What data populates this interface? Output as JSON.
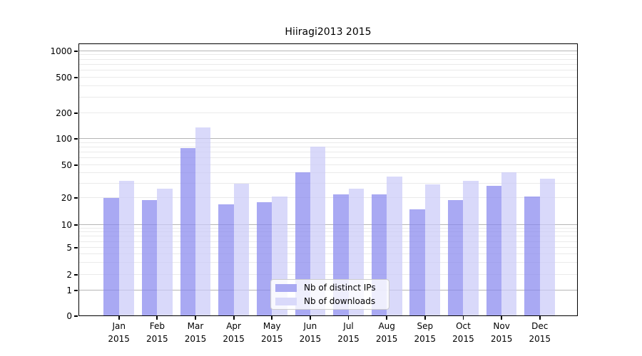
{
  "figure": {
    "title": "Hiiragi2013 2015"
  },
  "chart_data": {
    "type": "bar",
    "title": "Hiiragi2013 2015",
    "categories": [
      "Jan 2015",
      "Feb 2015",
      "Mar 2015",
      "Apr 2015",
      "May 2015",
      "Jun 2015",
      "Jul 2015",
      "Aug 2015",
      "Sep 2015",
      "Oct 2015",
      "Nov 2015",
      "Dec 2015"
    ],
    "x_ticks": [
      {
        "month": "Jan",
        "year": "2015"
      },
      {
        "month": "Feb",
        "year": "2015"
      },
      {
        "month": "Mar",
        "year": "2015"
      },
      {
        "month": "Apr",
        "year": "2015"
      },
      {
        "month": "May",
        "year": "2015"
      },
      {
        "month": "Jun",
        "year": "2015"
      },
      {
        "month": "Jul",
        "year": "2015"
      },
      {
        "month": "Aug",
        "year": "2015"
      },
      {
        "month": "Sep",
        "year": "2015"
      },
      {
        "month": "Oct",
        "year": "2015"
      },
      {
        "month": "Nov",
        "year": "2015"
      },
      {
        "month": "Dec",
        "year": "2015"
      }
    ],
    "series": [
      {
        "name": "Nb of distinct IPs",
        "color": "#a9a9f2",
        "values": [
          20,
          19,
          78,
          17,
          18,
          41,
          22,
          22,
          15,
          19,
          28,
          21
        ]
      },
      {
        "name": "Nb of downloads",
        "color": "#d9d9fa",
        "values": [
          32,
          26,
          136,
          30,
          21,
          82,
          26,
          36,
          29,
          32,
          41,
          34
        ]
      }
    ],
    "yscale": "symlog",
    "yticks": [
      0,
      1,
      2,
      5,
      10,
      20,
      50,
      100,
      200,
      500,
      1000
    ],
    "ylim": [
      0,
      1200
    ],
    "grid": "on",
    "legend_position": "lower center"
  },
  "colors": {
    "bar_ips_fill": "rgba(136,136,238,0.72)",
    "bar_downloads_fill": "rgba(202,202,248,0.72)",
    "legend_swatch_ips": "#a9a9f2",
    "legend_swatch_downloads": "#d9d9fa",
    "grid_major": "#b5b5b5",
    "grid_minor": "#eaeaea",
    "spine": "#000000",
    "background": "#ffffff"
  }
}
